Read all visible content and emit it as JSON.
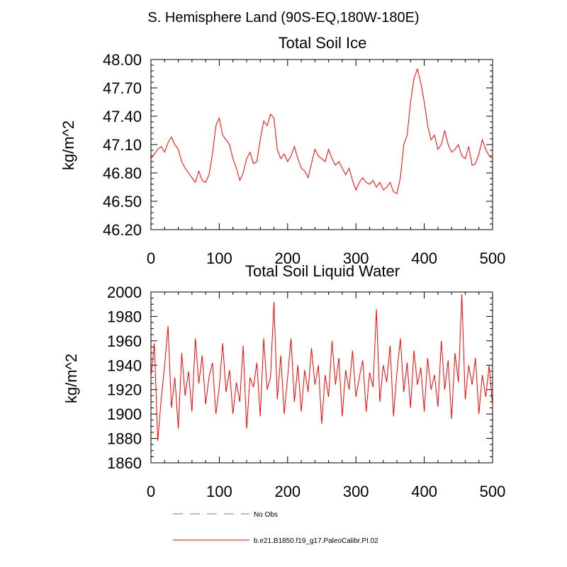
{
  "page": {
    "title": "S. Hemisphere Land (90S-EQ,180W-180E)"
  },
  "chart_data": [
    {
      "type": "line",
      "title": "Total Soil Ice",
      "xlabel": "",
      "ylabel": "kg/m^2",
      "xlim": [
        0,
        500
      ],
      "ylim": [
        46.2,
        48.0
      ],
      "xticks": [
        0,
        100,
        200,
        300,
        400,
        500
      ],
      "xtick_labels": [
        "0",
        "100",
        "200",
        "300",
        "400",
        "500"
      ],
      "yticks": [
        46.2,
        46.5,
        46.8,
        47.1,
        47.4,
        47.7,
        48.0
      ],
      "ytick_labels": [
        "46.20",
        "46.50",
        "46.80",
        "47.10",
        "47.40",
        "47.70",
        "48.00"
      ],
      "series": [
        {
          "name": "b.e21.B1850.f19_g17.PaleoCalibr.PI.02",
          "color": "#ff0000",
          "x": [
            0,
            5,
            10,
            15,
            20,
            25,
            30,
            35,
            40,
            45,
            50,
            55,
            60,
            65,
            70,
            75,
            80,
            85,
            90,
            95,
            100,
            105,
            110,
            115,
            120,
            125,
            130,
            135,
            140,
            145,
            150,
            155,
            160,
            165,
            170,
            175,
            180,
            185,
            190,
            195,
            200,
            205,
            210,
            215,
            220,
            225,
            230,
            235,
            240,
            245,
            250,
            255,
            260,
            265,
            270,
            275,
            280,
            285,
            290,
            295,
            300,
            305,
            310,
            315,
            320,
            325,
            330,
            335,
            340,
            345,
            350,
            355,
            360,
            365,
            370,
            375,
            380,
            385,
            390,
            395,
            400,
            405,
            410,
            415,
            420,
            425,
            430,
            435,
            440,
            445,
            450,
            455,
            460,
            465,
            470,
            475,
            480,
            485,
            490,
            495,
            500
          ],
          "y": [
            46.95,
            47.0,
            47.05,
            47.08,
            47.02,
            47.12,
            47.18,
            47.1,
            47.05,
            46.92,
            46.85,
            46.8,
            46.75,
            46.7,
            46.82,
            46.72,
            46.7,
            46.78,
            47.0,
            47.3,
            47.38,
            47.2,
            47.15,
            47.1,
            46.95,
            46.85,
            46.72,
            46.8,
            46.95,
            47.02,
            46.9,
            46.92,
            47.15,
            47.35,
            47.3,
            47.42,
            47.38,
            47.05,
            46.95,
            47.0,
            46.92,
            46.98,
            47.08,
            46.95,
            46.85,
            46.82,
            46.75,
            46.9,
            47.05,
            46.98,
            46.95,
            46.92,
            47.05,
            46.95,
            46.88,
            46.92,
            46.85,
            46.78,
            46.85,
            46.72,
            46.62,
            46.7,
            46.75,
            46.7,
            46.68,
            46.72,
            46.65,
            46.7,
            46.62,
            46.65,
            46.7,
            46.6,
            46.58,
            46.75,
            47.1,
            47.2,
            47.55,
            47.8,
            47.9,
            47.75,
            47.55,
            47.3,
            47.15,
            47.2,
            47.05,
            47.1,
            47.25,
            47.1,
            47.02,
            47.05,
            47.1,
            46.98,
            46.95,
            47.08,
            46.88,
            46.9,
            47.0,
            47.15,
            47.05,
            46.98,
            46.95
          ]
        }
      ],
      "legend": []
    },
    {
      "type": "line",
      "title": "Total Soil Liquid Water",
      "xlabel": "",
      "ylabel": "kg/m^2",
      "xlim": [
        0,
        500
      ],
      "ylim": [
        1860,
        2000
      ],
      "xticks": [
        0,
        100,
        200,
        300,
        400,
        500
      ],
      "xtick_labels": [
        "0",
        "100",
        "200",
        "300",
        "400",
        "500"
      ],
      "yticks": [
        1860,
        1880,
        1900,
        1920,
        1940,
        1960,
        1980,
        2000
      ],
      "ytick_labels": [
        "1860",
        "1880",
        "1900",
        "1920",
        "1940",
        "1960",
        "1980",
        "2000"
      ],
      "series": [
        {
          "name": "b.e21.B1850.f19_g17.PaleoCalibr.PI.02",
          "color": "#ff0000",
          "x": [
            0,
            5,
            10,
            15,
            20,
            25,
            30,
            35,
            40,
            45,
            50,
            55,
            60,
            65,
            70,
            75,
            80,
            85,
            90,
            95,
            100,
            105,
            110,
            115,
            120,
            125,
            130,
            135,
            140,
            145,
            150,
            155,
            160,
            165,
            170,
            175,
            180,
            185,
            190,
            195,
            200,
            205,
            210,
            215,
            220,
            225,
            230,
            235,
            240,
            245,
            250,
            255,
            260,
            265,
            270,
            275,
            280,
            285,
            290,
            295,
            300,
            305,
            310,
            315,
            320,
            325,
            330,
            335,
            340,
            345,
            350,
            355,
            360,
            365,
            370,
            375,
            380,
            385,
            390,
            395,
            400,
            405,
            410,
            415,
            420,
            425,
            430,
            435,
            440,
            445,
            450,
            455,
            460,
            465,
            470,
            475,
            480,
            485,
            490,
            495,
            500
          ],
          "y": [
            1930,
            1958,
            1878,
            1912,
            1940,
            1972,
            1905,
            1930,
            1888,
            1950,
            1915,
            1935,
            1902,
            1962,
            1925,
            1948,
            1908,
            1930,
            1942,
            1900,
            1922,
            1958,
            1918,
            1936,
            1900,
            1926,
            1910,
            1956,
            1888,
            1930,
            1922,
            1942,
            1898,
            1962,
            1920,
            1930,
            1992,
            1912,
            1948,
            1900,
            1930,
            1962,
            1910,
            1940,
            1902,
            1936,
            1918,
            1954,
            1924,
            1940,
            1892,
            1932,
            1914,
            1960,
            1924,
            1946,
            1898,
            1936,
            1920,
            1952,
            1914,
            1930,
            1944,
            1902,
            1934,
            1922,
            1986,
            1910,
            1940,
            1926,
            1956,
            1898,
            1934,
            1962,
            1918,
            1942,
            1905,
            1952,
            1924,
            1938,
            1902,
            1946,
            1920,
            1932,
            1906,
            1960,
            1920,
            1944,
            1896,
            1950,
            1926,
            1998,
            1912,
            1940,
            1924,
            1946,
            1900,
            1932,
            1914,
            1940,
            1906
          ]
        }
      ],
      "legend": [
        {
          "label": "No Obs",
          "style": "dashed",
          "color": "#8f8fd6"
        },
        {
          "label": "b.e21.B1850.f19_g17.PaleoCalibr.PI.02",
          "style": "solid",
          "color": "#ff0000"
        }
      ]
    }
  ]
}
